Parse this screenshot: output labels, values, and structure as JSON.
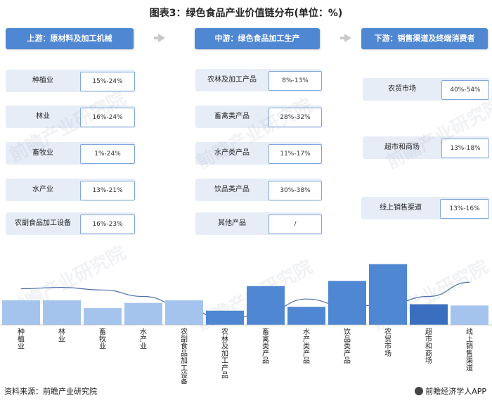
{
  "title": "图表3：绿色食品产业价值链分布(单位：%)",
  "stages": [
    {
      "header": "上游：原材料及加工机械",
      "items": [
        {
          "label": "种植业",
          "value": "15%-24%"
        },
        {
          "label": "林业",
          "value": "16%-24%"
        },
        {
          "label": "畜牧业",
          "value": "1%-24%"
        },
        {
          "label": "水产业",
          "value": "13%-21%"
        },
        {
          "label": "农副食品加工设备",
          "value": "16%-23%"
        }
      ]
    },
    {
      "header": "中游：绿色食品加工生产",
      "items": [
        {
          "label": "农林及加工产品",
          "value": "8%-13%"
        },
        {
          "label": "畜禽类产品",
          "value": "28%-32%"
        },
        {
          "label": "水产类产品",
          "value": "11%-17%"
        },
        {
          "label": "饮品类产品",
          "value": "30%-38%"
        },
        {
          "label": "其他产品",
          "value": "/"
        }
      ]
    },
    {
      "header": "下游：销售渠道及终端消费者",
      "items": [
        {
          "label": "农贸市场",
          "value": "40%-54%"
        },
        {
          "label": "超市和商场",
          "value": "13%-18%"
        },
        {
          "label": "线上销售渠道",
          "value": "13%-16%"
        }
      ]
    }
  ],
  "watermark": "前瞻产业研究院",
  "chart_data": {
    "type": "bar",
    "categories": [
      "种植业",
      "林业",
      "畜牧业",
      "水产业",
      "农副食品加工设备",
      "农林及加工产品",
      "畜禽类产品",
      "水产类产品",
      "饮品类产品",
      "农贸市场",
      "超市和商场",
      "线上销售渠道"
    ],
    "values": [
      19,
      19,
      13,
      17,
      19,
      11,
      30,
      14,
      34,
      47,
      16,
      15
    ],
    "colors": [
      "#a4c4ee",
      "#a4c4ee",
      "#a4c4ee",
      "#a4c4ee",
      "#a4c4ee",
      "#4f87d2",
      "#4f87d2",
      "#4f87d2",
      "#4f87d2",
      "#4f87d2",
      "#3a6fc0",
      "#a4c4ee"
    ],
    "trend": [
      28,
      29,
      27,
      22,
      14,
      3,
      10,
      20,
      14,
      16,
      22,
      33
    ],
    "ylim": [
      0,
      50
    ],
    "grid": false
  },
  "footer": {
    "source": "资料来源：前瞻产业研究院",
    "brand": "前瞻经济学人APP"
  }
}
